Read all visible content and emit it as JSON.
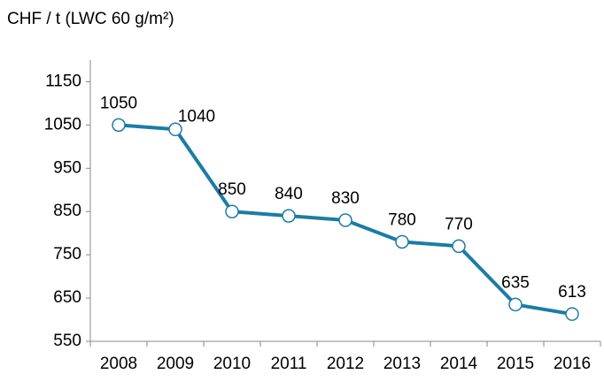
{
  "chart_data": {
    "type": "line",
    "title": "CHF / t (LWC 60 g/m²)",
    "categories": [
      "2008",
      "2009",
      "2010",
      "2011",
      "2012",
      "2013",
      "2014",
      "2015",
      "2016"
    ],
    "values": [
      1050,
      1040,
      850,
      840,
      830,
      780,
      770,
      635,
      613
    ],
    "color": "#1b7ca6",
    "ylim": [
      550,
      1200
    ],
    "yticks": [
      550,
      650,
      750,
      850,
      950,
      1050,
      1150
    ],
    "grid": false
  }
}
